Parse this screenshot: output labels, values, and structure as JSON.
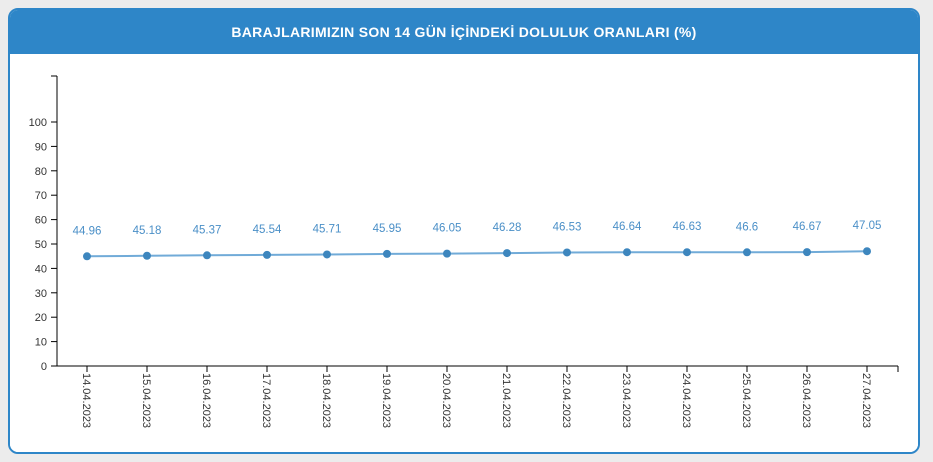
{
  "page": {
    "background_color": "#ececec"
  },
  "card": {
    "title": "BARAJLARIMIZIN SON 14 GÜN İÇİNDEKİ DOLULUK ORANLARI (%)",
    "header_color": "#2e86c8",
    "border_color": "#2e86c8",
    "body_color": "#ffffff"
  },
  "chart_data": {
    "type": "line",
    "title": "BARAJLARIMIZIN SON 14 GÜN İÇİNDEKİ DOLULUK ORANLARI (%)",
    "categories": [
      "14.04.2023",
      "15.04.2023",
      "16.04.2023",
      "17.04.2023",
      "18.04.2023",
      "19.04.2023",
      "20.04.2023",
      "21.04.2023",
      "22.04.2023",
      "23.04.2023",
      "24.04.2023",
      "25.04.2023",
      "26.04.2023",
      "27.04.2023"
    ],
    "values": [
      44.96,
      45.18,
      45.37,
      45.54,
      45.71,
      45.95,
      46.05,
      46.28,
      46.53,
      46.64,
      46.63,
      46.6,
      46.67,
      47.05
    ],
    "data_labels": [
      "44.96",
      "45.18",
      "45.37",
      "45.54",
      "45.71",
      "45.95",
      "46.05",
      "46.28",
      "46.53",
      "46.64",
      "46.63",
      "46.6",
      "46.67",
      "47.05"
    ],
    "xlabel": "",
    "ylabel": "",
    "ylim": [
      0,
      115
    ],
    "yticks": [
      0,
      10,
      20,
      30,
      40,
      50,
      60,
      70,
      80,
      90,
      100
    ],
    "grid": false,
    "legend": "none",
    "x_label_rotation_deg": 90,
    "colors": {
      "line": "#71abd8",
      "marker": "#3d86be",
      "data_label": "#4a8fc7",
      "axis": "#000000",
      "tick_label": "#333333"
    }
  }
}
